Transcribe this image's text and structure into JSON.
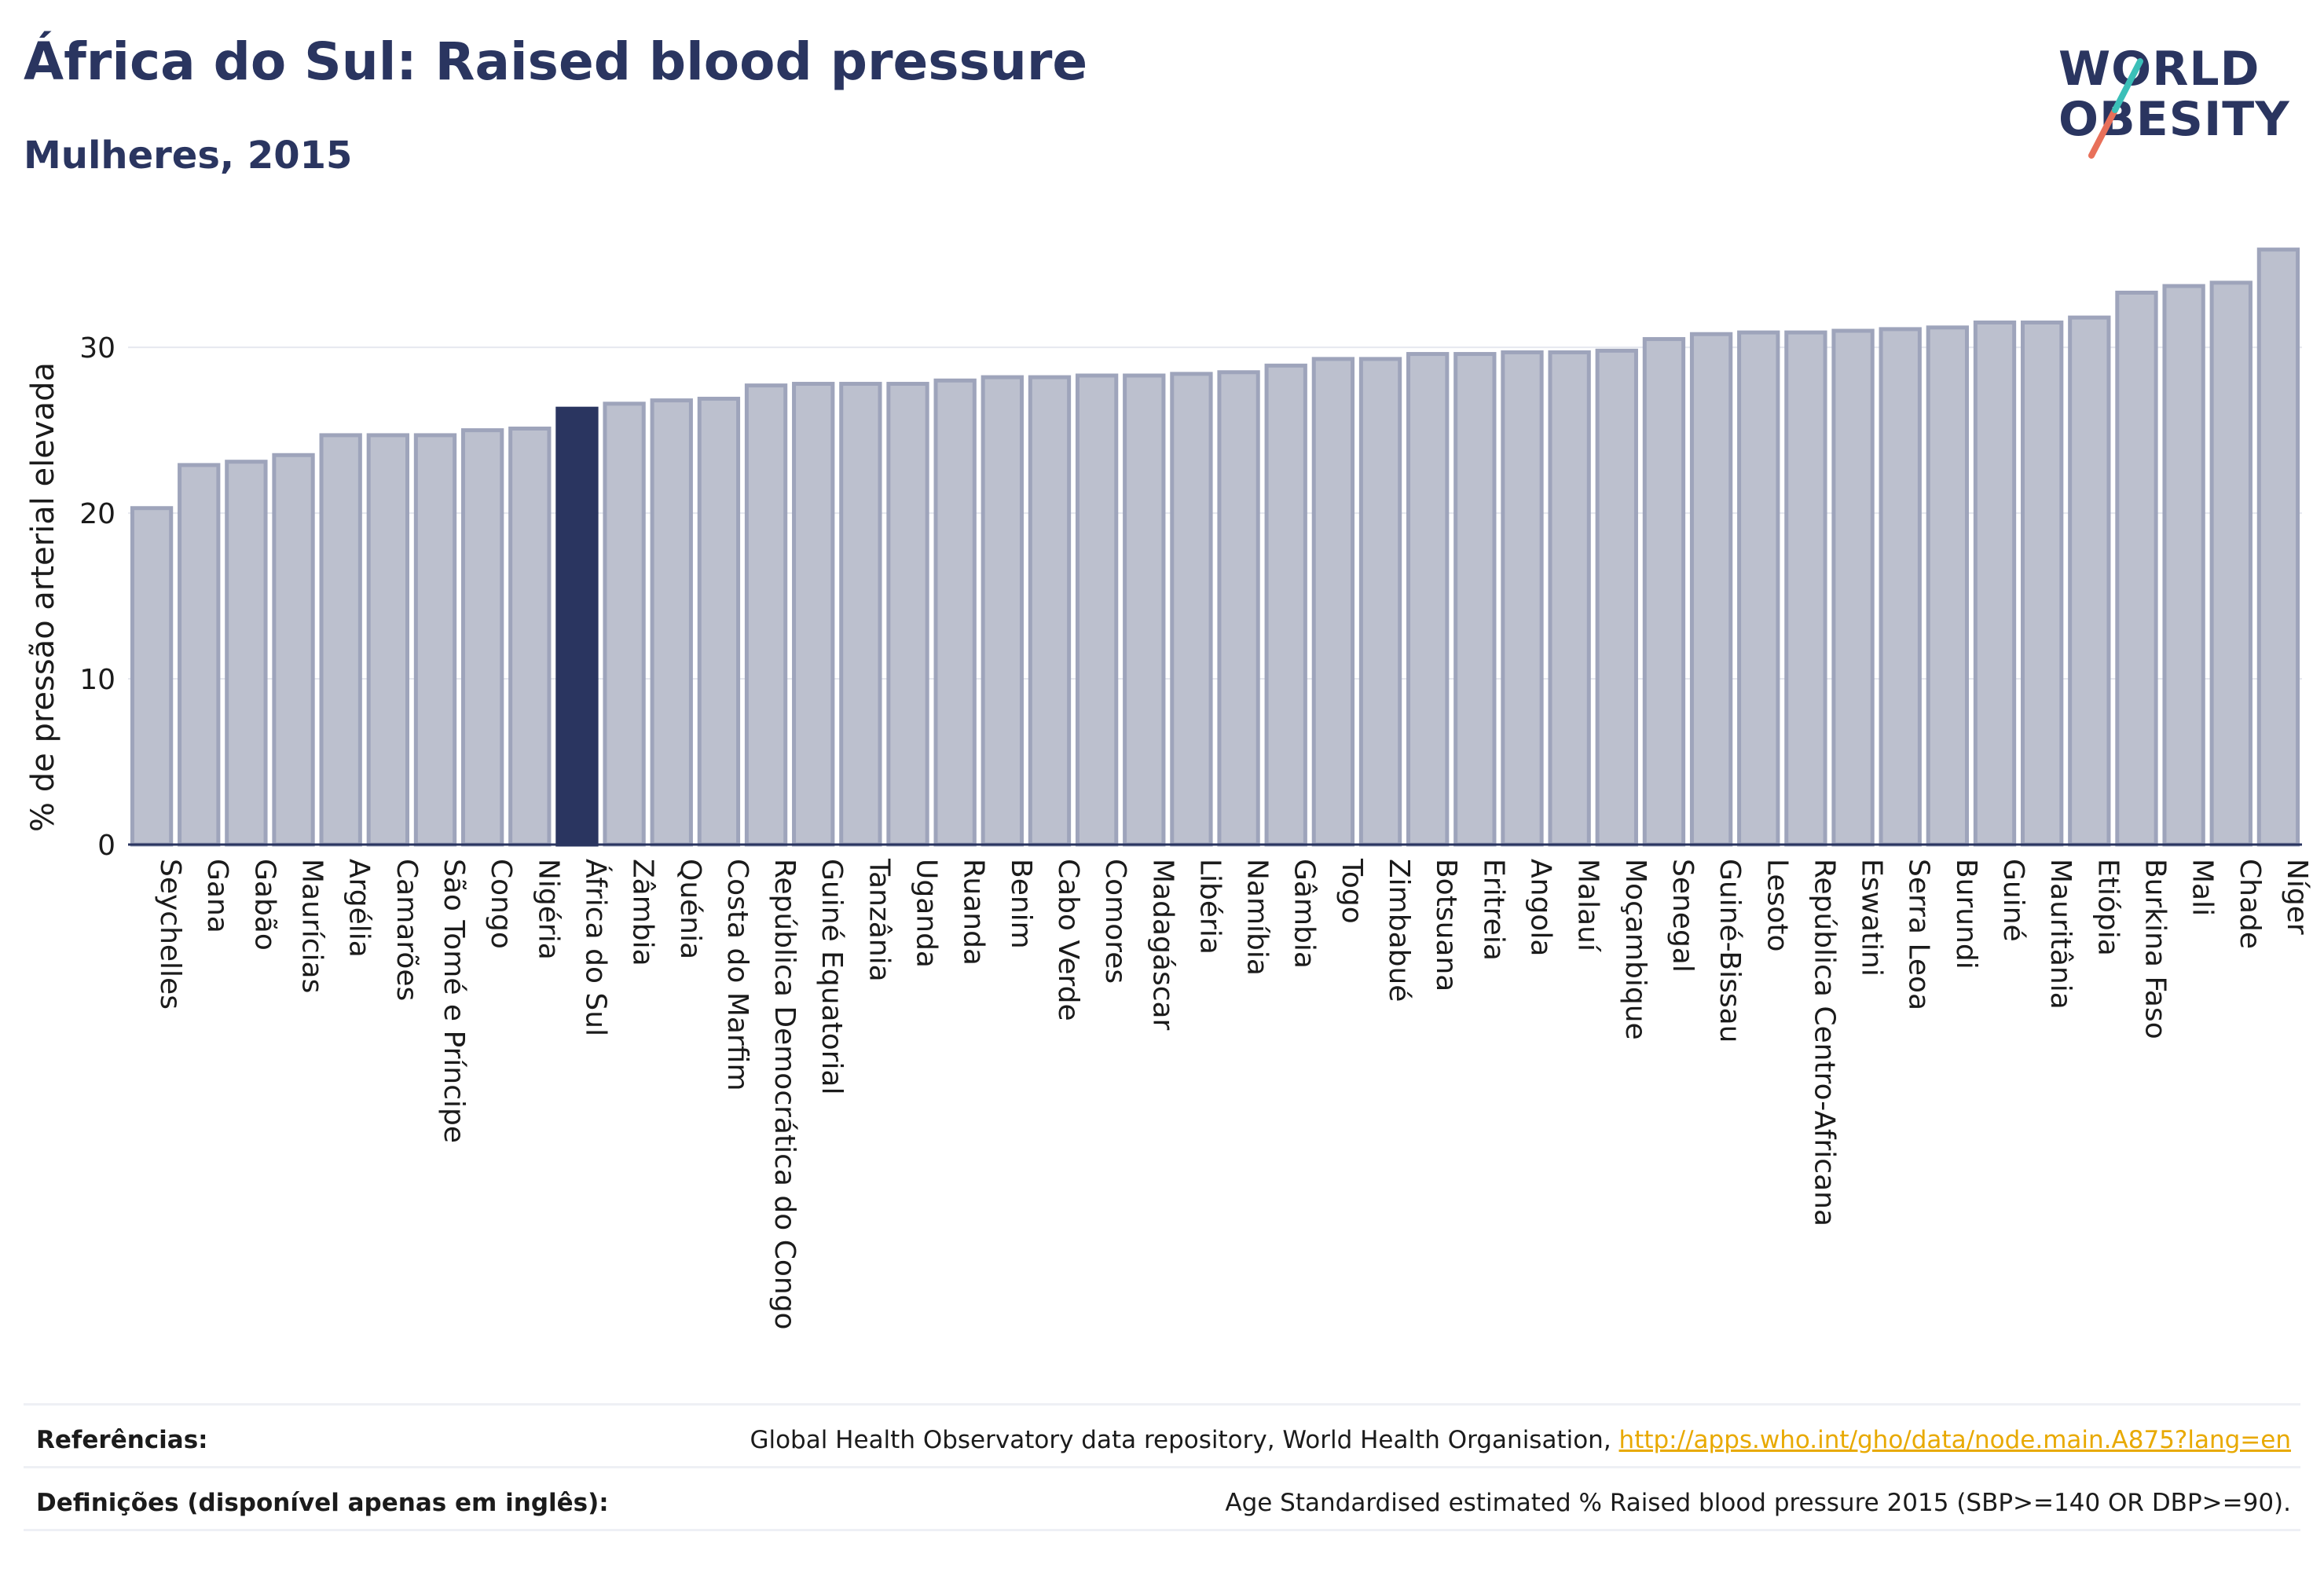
{
  "title": "África do Sul: Raised blood pressure",
  "subtitle": "Mulheres, 2015",
  "logo": {
    "line1": "WORLD",
    "line2": "OBESITY"
  },
  "colors": {
    "bar": "#bcc0ce",
    "bar_stroke": "#9ea4bb",
    "highlight": "#2a3560",
    "text": "#2a3560",
    "link": "#e8a900"
  },
  "chart_data": {
    "type": "bar",
    "ylabel": "% de pressão arterial elevada",
    "xlabel": "",
    "ylim": [
      0,
      36.5
    ],
    "yticks": [
      0,
      10,
      20,
      30
    ],
    "grid": true,
    "highlight": "África do Sul",
    "categories": [
      "Seychelles",
      "Gana",
      "Gabão",
      "Maurícias",
      "Argélia",
      "Camarões",
      "São Tomé e Príncipe",
      "Congo",
      "Nigéria",
      "África do Sul",
      "Zâmbia",
      "Quénia",
      "Costa do Marfim",
      "República Democrática do Congo",
      "Guiné Equatorial",
      "Tanzânia",
      "Uganda",
      "Ruanda",
      "Benim",
      "Cabo Verde",
      "Comores",
      "Madagáscar",
      "Libéria",
      "Namíbia",
      "Gâmbia",
      "Togo",
      "Zimbabué",
      "Botsuana",
      "Eritreia",
      "Angola",
      "Malauí",
      "Moçambique",
      "Senegal",
      "Guiné-Bissau",
      "Lesoto",
      "República Centro-Africana",
      "Eswatini",
      "Serra Leoa",
      "Burundi",
      "Guiné",
      "Mauritânia",
      "Etiópia",
      "Burkina Faso",
      "Mali",
      "Chade",
      "Níger"
    ],
    "values": [
      20.3,
      22.9,
      23.1,
      23.5,
      24.7,
      24.7,
      24.7,
      25.0,
      25.1,
      26.3,
      26.6,
      26.8,
      26.9,
      27.7,
      27.8,
      27.8,
      27.8,
      28.0,
      28.2,
      28.2,
      28.3,
      28.3,
      28.4,
      28.5,
      28.9,
      29.3,
      29.3,
      29.6,
      29.6,
      29.7,
      29.7,
      29.8,
      30.5,
      30.8,
      30.9,
      30.9,
      31.0,
      31.1,
      31.2,
      31.5,
      31.5,
      31.8,
      33.3,
      33.7,
      33.9,
      35.9
    ]
  },
  "footer": {
    "references_label": "Referências:",
    "references_text": "Global Health Observatory data repository, World Health Organisation, ",
    "references_link": "http://apps.who.int/gho/data/node.main.A875?lang=en",
    "definitions_label": "Definições (disponível apenas em inglês):",
    "definitions_text": "Age Standardised estimated % Raised blood pressure 2015 (SBP>=140 OR DBP>=90)."
  }
}
